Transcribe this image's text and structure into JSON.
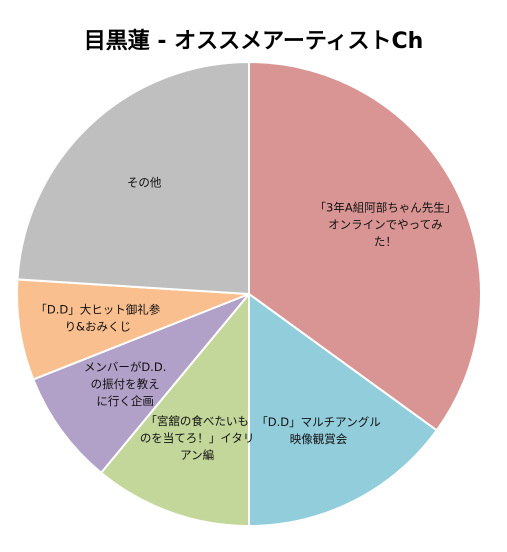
{
  "chart_data": {
    "type": "pie",
    "title": "目黒蓮 - オススメアーティストCh",
    "legend": "none",
    "start_angle_deg": 0,
    "direction": "clockwise",
    "slices": [
      {
        "label_lines": [
          "「3年A組阿部ちゃん先生」",
          "オンラインでやってみ",
          "た！"
        ],
        "value": 35,
        "color": "#D99594"
      },
      {
        "label_lines": [
          "「D.D」マルチアングル",
          "映像観賞会"
        ],
        "value": 15,
        "color": "#92CDDC"
      },
      {
        "label_lines": [
          "「宮舘の食べたいも",
          "のを当てろ！」イタリ",
          "アン編"
        ],
        "value": 11,
        "color": "#C4D79B"
      },
      {
        "label_lines": [
          "メンバーがD.D.",
          "の振付を教え",
          "に行く企画"
        ],
        "value": 8,
        "color": "#B1A0C7"
      },
      {
        "label_lines": [
          "「D.D」大ヒット御礼参",
          "り&おみくじ"
        ],
        "value": 7,
        "color": "#FABF8F"
      },
      {
        "label_lines": [
          "その他"
        ],
        "value": 24,
        "color": "#BFBFBF"
      }
    ]
  }
}
